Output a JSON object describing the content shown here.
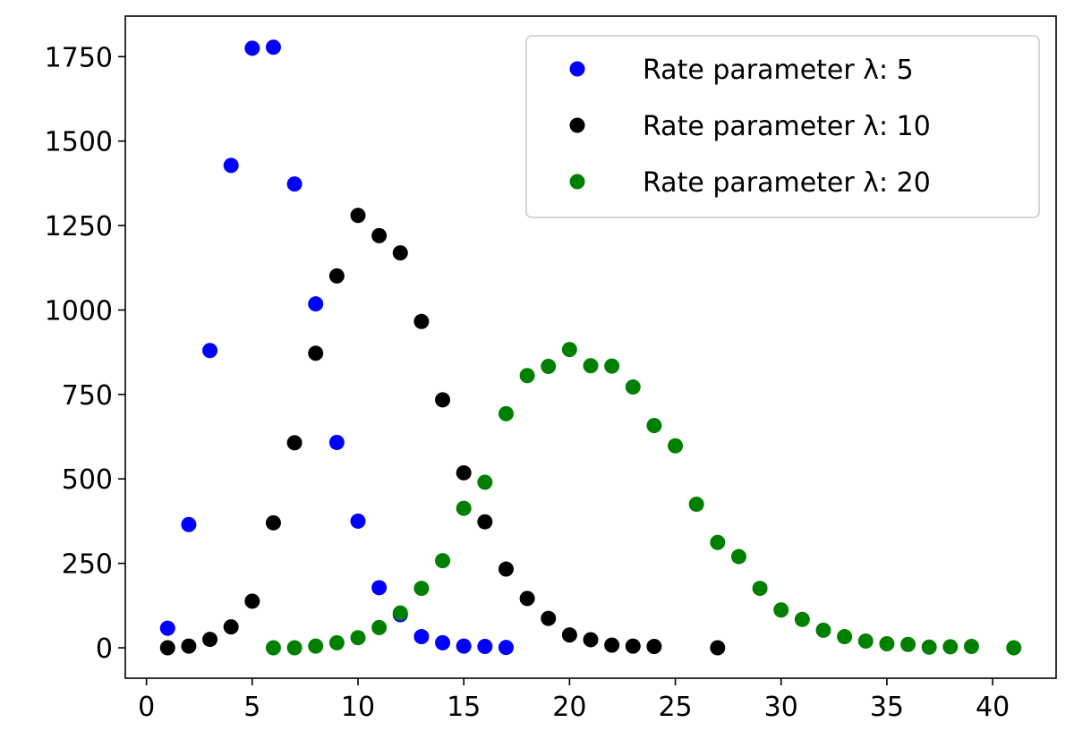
{
  "chart_data": {
    "type": "scatter",
    "title": "",
    "xlabel": "",
    "ylabel": "",
    "xlim": [
      -1,
      43
    ],
    "ylim": [
      -90,
      1870
    ],
    "xticks": [
      0,
      5,
      10,
      15,
      20,
      25,
      30,
      35,
      40
    ],
    "yticks": [
      0,
      250,
      500,
      750,
      1000,
      1250,
      1500,
      1750
    ],
    "grid": false,
    "legend_position": "top-right",
    "series": [
      {
        "name": "Rate parameter λ: 5",
        "color": "#0000ff",
        "x": [
          1,
          2,
          3,
          4,
          5,
          6,
          7,
          8,
          9,
          10,
          11,
          12,
          13,
          14,
          15,
          16,
          17
        ],
        "y": [
          58,
          365,
          880,
          1428,
          1775,
          1778,
          1373,
          1018,
          608,
          375,
          178,
          98,
          33,
          15,
          5,
          4,
          1
        ]
      },
      {
        "name": "Rate parameter λ: 10",
        "color": "#000000",
        "x": [
          1,
          2,
          3,
          4,
          5,
          6,
          7,
          8,
          9,
          10,
          11,
          12,
          13,
          14,
          15,
          16,
          17,
          18,
          19,
          20,
          21,
          22,
          23,
          24,
          27
        ],
        "y": [
          0,
          5,
          25,
          62,
          138,
          370,
          607,
          872,
          1101,
          1280,
          1220,
          1169,
          966,
          734,
          518,
          373,
          233,
          146,
          87,
          38,
          24,
          8,
          5,
          4,
          0
        ]
      },
      {
        "name": "Rate parameter λ: 20",
        "color": "#008000",
        "x": [
          6,
          7,
          8,
          9,
          10,
          11,
          12,
          13,
          14,
          15,
          16,
          17,
          18,
          19,
          20,
          21,
          22,
          23,
          24,
          25,
          26,
          27,
          28,
          29,
          30,
          31,
          32,
          33,
          34,
          35,
          36,
          37,
          38,
          39,
          41
        ],
        "y": [
          0,
          0,
          5,
          15,
          30,
          60,
          103,
          176,
          258,
          413,
          490,
          693,
          806,
          833,
          883,
          835,
          834,
          772,
          658,
          598,
          425,
          312,
          270,
          176,
          112,
          84,
          52,
          33,
          20,
          12,
          10,
          2,
          3,
          4,
          0
        ]
      }
    ]
  }
}
